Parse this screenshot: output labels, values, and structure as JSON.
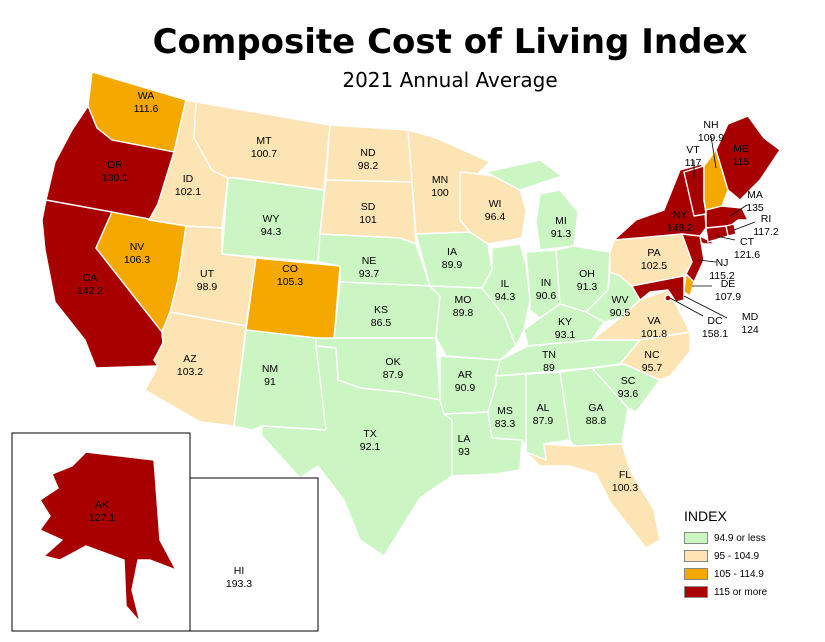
{
  "title": "Composite Cost of Living Index",
  "subtitle": "2021 Annual Average",
  "legend": {
    "title": "INDEX",
    "items": [
      {
        "label": "94.9 or less",
        "color": "#ccf5c4"
      },
      {
        "label": "95 - 104.9",
        "color": "#fde4b4"
      },
      {
        "label": "105 - 114.9",
        "color": "#f5a800"
      },
      {
        "label": "115 or more",
        "color": "#a80000"
      }
    ]
  },
  "states": {
    "WA": {
      "abbr": "WA",
      "value": "111.6"
    },
    "OR": {
      "abbr": "OR",
      "value": "130.1"
    },
    "CA": {
      "abbr": "CA",
      "value": "142.2"
    },
    "NV": {
      "abbr": "NV",
      "value": "106.3"
    },
    "ID": {
      "abbr": "ID",
      "value": "102.1"
    },
    "MT": {
      "abbr": "MT",
      "value": "100.7"
    },
    "WY": {
      "abbr": "WY",
      "value": "94.3"
    },
    "UT": {
      "abbr": "UT",
      "value": "98.9"
    },
    "AZ": {
      "abbr": "AZ",
      "value": "103.2"
    },
    "CO": {
      "abbr": "CO",
      "value": "105.3"
    },
    "NM": {
      "abbr": "NM",
      "value": "91"
    },
    "ND": {
      "abbr": "ND",
      "value": "98.2"
    },
    "SD": {
      "abbr": "SD",
      "value": "101"
    },
    "NE": {
      "abbr": "NE",
      "value": "93.7"
    },
    "KS": {
      "abbr": "KS",
      "value": "86.5"
    },
    "OK": {
      "abbr": "OK",
      "value": "87.9"
    },
    "TX": {
      "abbr": "TX",
      "value": "92.1"
    },
    "MN": {
      "abbr": "MN",
      "value": "100"
    },
    "IA": {
      "abbr": "IA",
      "value": "89.9"
    },
    "MO": {
      "abbr": "MO",
      "value": "89.8"
    },
    "AR": {
      "abbr": "AR",
      "value": "90.9"
    },
    "LA": {
      "abbr": "LA",
      "value": "93"
    },
    "WI": {
      "abbr": "WI",
      "value": "96.4"
    },
    "IL": {
      "abbr": "IL",
      "value": "94.3"
    },
    "MI": {
      "abbr": "MI",
      "value": "91.3"
    },
    "IN": {
      "abbr": "IN",
      "value": "90.6"
    },
    "OH": {
      "abbr": "OH",
      "value": "91.3"
    },
    "KY": {
      "abbr": "KY",
      "value": "93.1"
    },
    "TN": {
      "abbr": "TN",
      "value": "89"
    },
    "MS": {
      "abbr": "MS",
      "value": "83.3"
    },
    "AL": {
      "abbr": "AL",
      "value": "87.9"
    },
    "GA": {
      "abbr": "GA",
      "value": "88.8"
    },
    "FL": {
      "abbr": "FL",
      "value": "100.3"
    },
    "SC": {
      "abbr": "SC",
      "value": "93.6"
    },
    "NC": {
      "abbr": "NC",
      "value": "95.7"
    },
    "VA": {
      "abbr": "VA",
      "value": "101.8"
    },
    "WV": {
      "abbr": "WV",
      "value": "90.5"
    },
    "PA": {
      "abbr": "PA",
      "value": "102.5"
    },
    "NY": {
      "abbr": "NY",
      "value": "148.2"
    },
    "VT": {
      "abbr": "VT",
      "value": "117"
    },
    "NH": {
      "abbr": "NH",
      "value": "109.9"
    },
    "ME": {
      "abbr": "ME",
      "value": "115"
    },
    "MA": {
      "abbr": "MA",
      "value": "135"
    },
    "RI": {
      "abbr": "RI",
      "value": "117.2"
    },
    "CT": {
      "abbr": "CT",
      "value": "121.6"
    },
    "NJ": {
      "abbr": "NJ",
      "value": "115.2"
    },
    "DE": {
      "abbr": "DE",
      "value": "107.9"
    },
    "MD": {
      "abbr": "MD",
      "value": "124"
    },
    "DC": {
      "abbr": "DC",
      "value": "158.1"
    },
    "AK": {
      "abbr": "AK",
      "value": "127.1"
    },
    "HI": {
      "abbr": "HI",
      "value": "193.3"
    }
  }
}
